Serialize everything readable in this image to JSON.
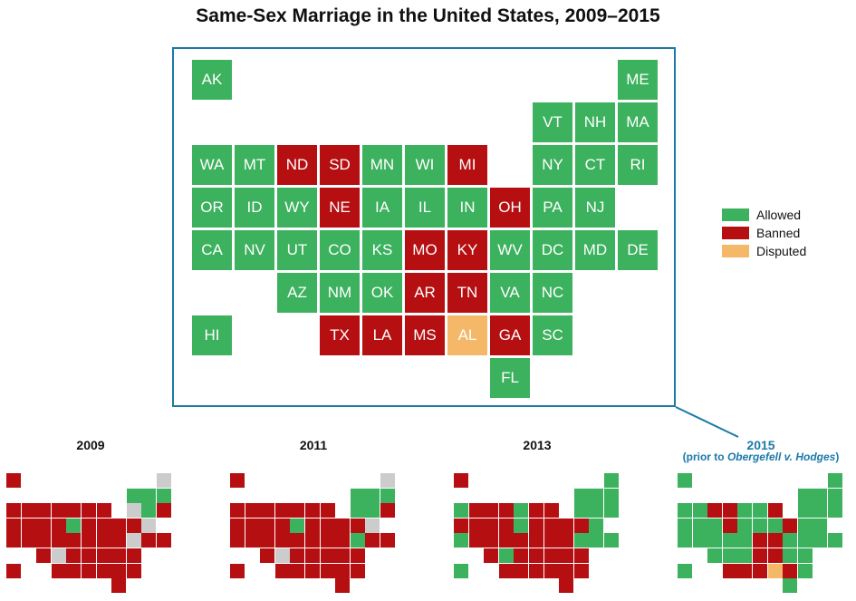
{
  "title": "Same-Sex Marriage in the United States, 2009–2015",
  "colors": {
    "allowed": "#3cb15e",
    "banned": "#b50f12",
    "disputed": "#f4b868",
    "unknown": "#cccccc"
  },
  "legend": [
    {
      "key": "allowed",
      "label": "Allowed"
    },
    {
      "key": "banned",
      "label": "Banned"
    },
    {
      "key": "disputed",
      "label": "Disputed"
    }
  ],
  "states": [
    {
      "abbr": "AK",
      "col": 0,
      "row": 0
    },
    {
      "abbr": "ME",
      "col": 10,
      "row": 0
    },
    {
      "abbr": "VT",
      "col": 8,
      "row": 1
    },
    {
      "abbr": "NH",
      "col": 9,
      "row": 1
    },
    {
      "abbr": "MA",
      "col": 10,
      "row": 1
    },
    {
      "abbr": "WA",
      "col": 0,
      "row": 2
    },
    {
      "abbr": "MT",
      "col": 1,
      "row": 2
    },
    {
      "abbr": "ND",
      "col": 2,
      "row": 2
    },
    {
      "abbr": "SD",
      "col": 3,
      "row": 2
    },
    {
      "abbr": "MN",
      "col": 4,
      "row": 2
    },
    {
      "abbr": "WI",
      "col": 5,
      "row": 2
    },
    {
      "abbr": "MI",
      "col": 6,
      "row": 2
    },
    {
      "abbr": "NY",
      "col": 8,
      "row": 2
    },
    {
      "abbr": "CT",
      "col": 9,
      "row": 2
    },
    {
      "abbr": "RI",
      "col": 10,
      "row": 2
    },
    {
      "abbr": "OR",
      "col": 0,
      "row": 3
    },
    {
      "abbr": "ID",
      "col": 1,
      "row": 3
    },
    {
      "abbr": "WY",
      "col": 2,
      "row": 3
    },
    {
      "abbr": "NE",
      "col": 3,
      "row": 3
    },
    {
      "abbr": "IA",
      "col": 4,
      "row": 3
    },
    {
      "abbr": "IL",
      "col": 5,
      "row": 3
    },
    {
      "abbr": "IN",
      "col": 6,
      "row": 3
    },
    {
      "abbr": "OH",
      "col": 7,
      "row": 3
    },
    {
      "abbr": "PA",
      "col": 8,
      "row": 3
    },
    {
      "abbr": "NJ",
      "col": 9,
      "row": 3
    },
    {
      "abbr": "CA",
      "col": 0,
      "row": 4
    },
    {
      "abbr": "NV",
      "col": 1,
      "row": 4
    },
    {
      "abbr": "UT",
      "col": 2,
      "row": 4
    },
    {
      "abbr": "CO",
      "col": 3,
      "row": 4
    },
    {
      "abbr": "KS",
      "col": 4,
      "row": 4
    },
    {
      "abbr": "MO",
      "col": 5,
      "row": 4
    },
    {
      "abbr": "KY",
      "col": 6,
      "row": 4
    },
    {
      "abbr": "WV",
      "col": 7,
      "row": 4
    },
    {
      "abbr": "DC",
      "col": 8,
      "row": 4
    },
    {
      "abbr": "MD",
      "col": 9,
      "row": 4
    },
    {
      "abbr": "DE",
      "col": 10,
      "row": 4
    },
    {
      "abbr": "AZ",
      "col": 2,
      "row": 5
    },
    {
      "abbr": "NM",
      "col": 3,
      "row": 5
    },
    {
      "abbr": "OK",
      "col": 4,
      "row": 5
    },
    {
      "abbr": "AR",
      "col": 5,
      "row": 5
    },
    {
      "abbr": "TN",
      "col": 6,
      "row": 5
    },
    {
      "abbr": "VA",
      "col": 7,
      "row": 5
    },
    {
      "abbr": "NC",
      "col": 8,
      "row": 5
    },
    {
      "abbr": "HI",
      "col": 0,
      "row": 6
    },
    {
      "abbr": "TX",
      "col": 3,
      "row": 6
    },
    {
      "abbr": "LA",
      "col": 4,
      "row": 6
    },
    {
      "abbr": "MS",
      "col": 5,
      "row": 6
    },
    {
      "abbr": "AL",
      "col": 6,
      "row": 6
    },
    {
      "abbr": "GA",
      "col": 7,
      "row": 6
    },
    {
      "abbr": "SC",
      "col": 8,
      "row": 6
    },
    {
      "abbr": "FL",
      "col": 7,
      "row": 7
    }
  ],
  "years": [
    {
      "label": "2009",
      "allowed": [
        "IA",
        "VT",
        "NH",
        "MA",
        "CT"
      ],
      "disputed": [],
      "unknown": [
        "ME",
        "NY",
        "NJ",
        "DC",
        "NM"
      ]
    },
    {
      "label": "2011",
      "allowed": [
        "IA",
        "VT",
        "NH",
        "MA",
        "CT",
        "NY",
        "DC"
      ],
      "disputed": [],
      "unknown": [
        "ME",
        "NJ",
        "NM"
      ]
    },
    {
      "label": "2013",
      "allowed": [
        "WA",
        "CA",
        "MN",
        "IA",
        "ME",
        "VT",
        "NH",
        "MA",
        "NY",
        "CT",
        "RI",
        "NJ",
        "DC",
        "MD",
        "DE",
        "HI",
        "NM"
      ],
      "disputed": [],
      "unknown": []
    },
    {
      "label": "2015",
      "allowed": [
        "AK",
        "ME",
        "VT",
        "NH",
        "MA",
        "WA",
        "MT",
        "MN",
        "WI",
        "NY",
        "CT",
        "RI",
        "OR",
        "ID",
        "WY",
        "IA",
        "IL",
        "IN",
        "PA",
        "NJ",
        "CA",
        "NV",
        "UT",
        "CO",
        "KS",
        "WV",
        "DC",
        "MD",
        "DE",
        "AZ",
        "NM",
        "OK",
        "VA",
        "NC",
        "HI",
        "SC",
        "FL"
      ],
      "disputed": [
        "AL"
      ],
      "unknown": []
    }
  ],
  "note": {
    "prefix": "(prior to ",
    "case": "Obergefell v. Hodges",
    "suffix": ")"
  }
}
